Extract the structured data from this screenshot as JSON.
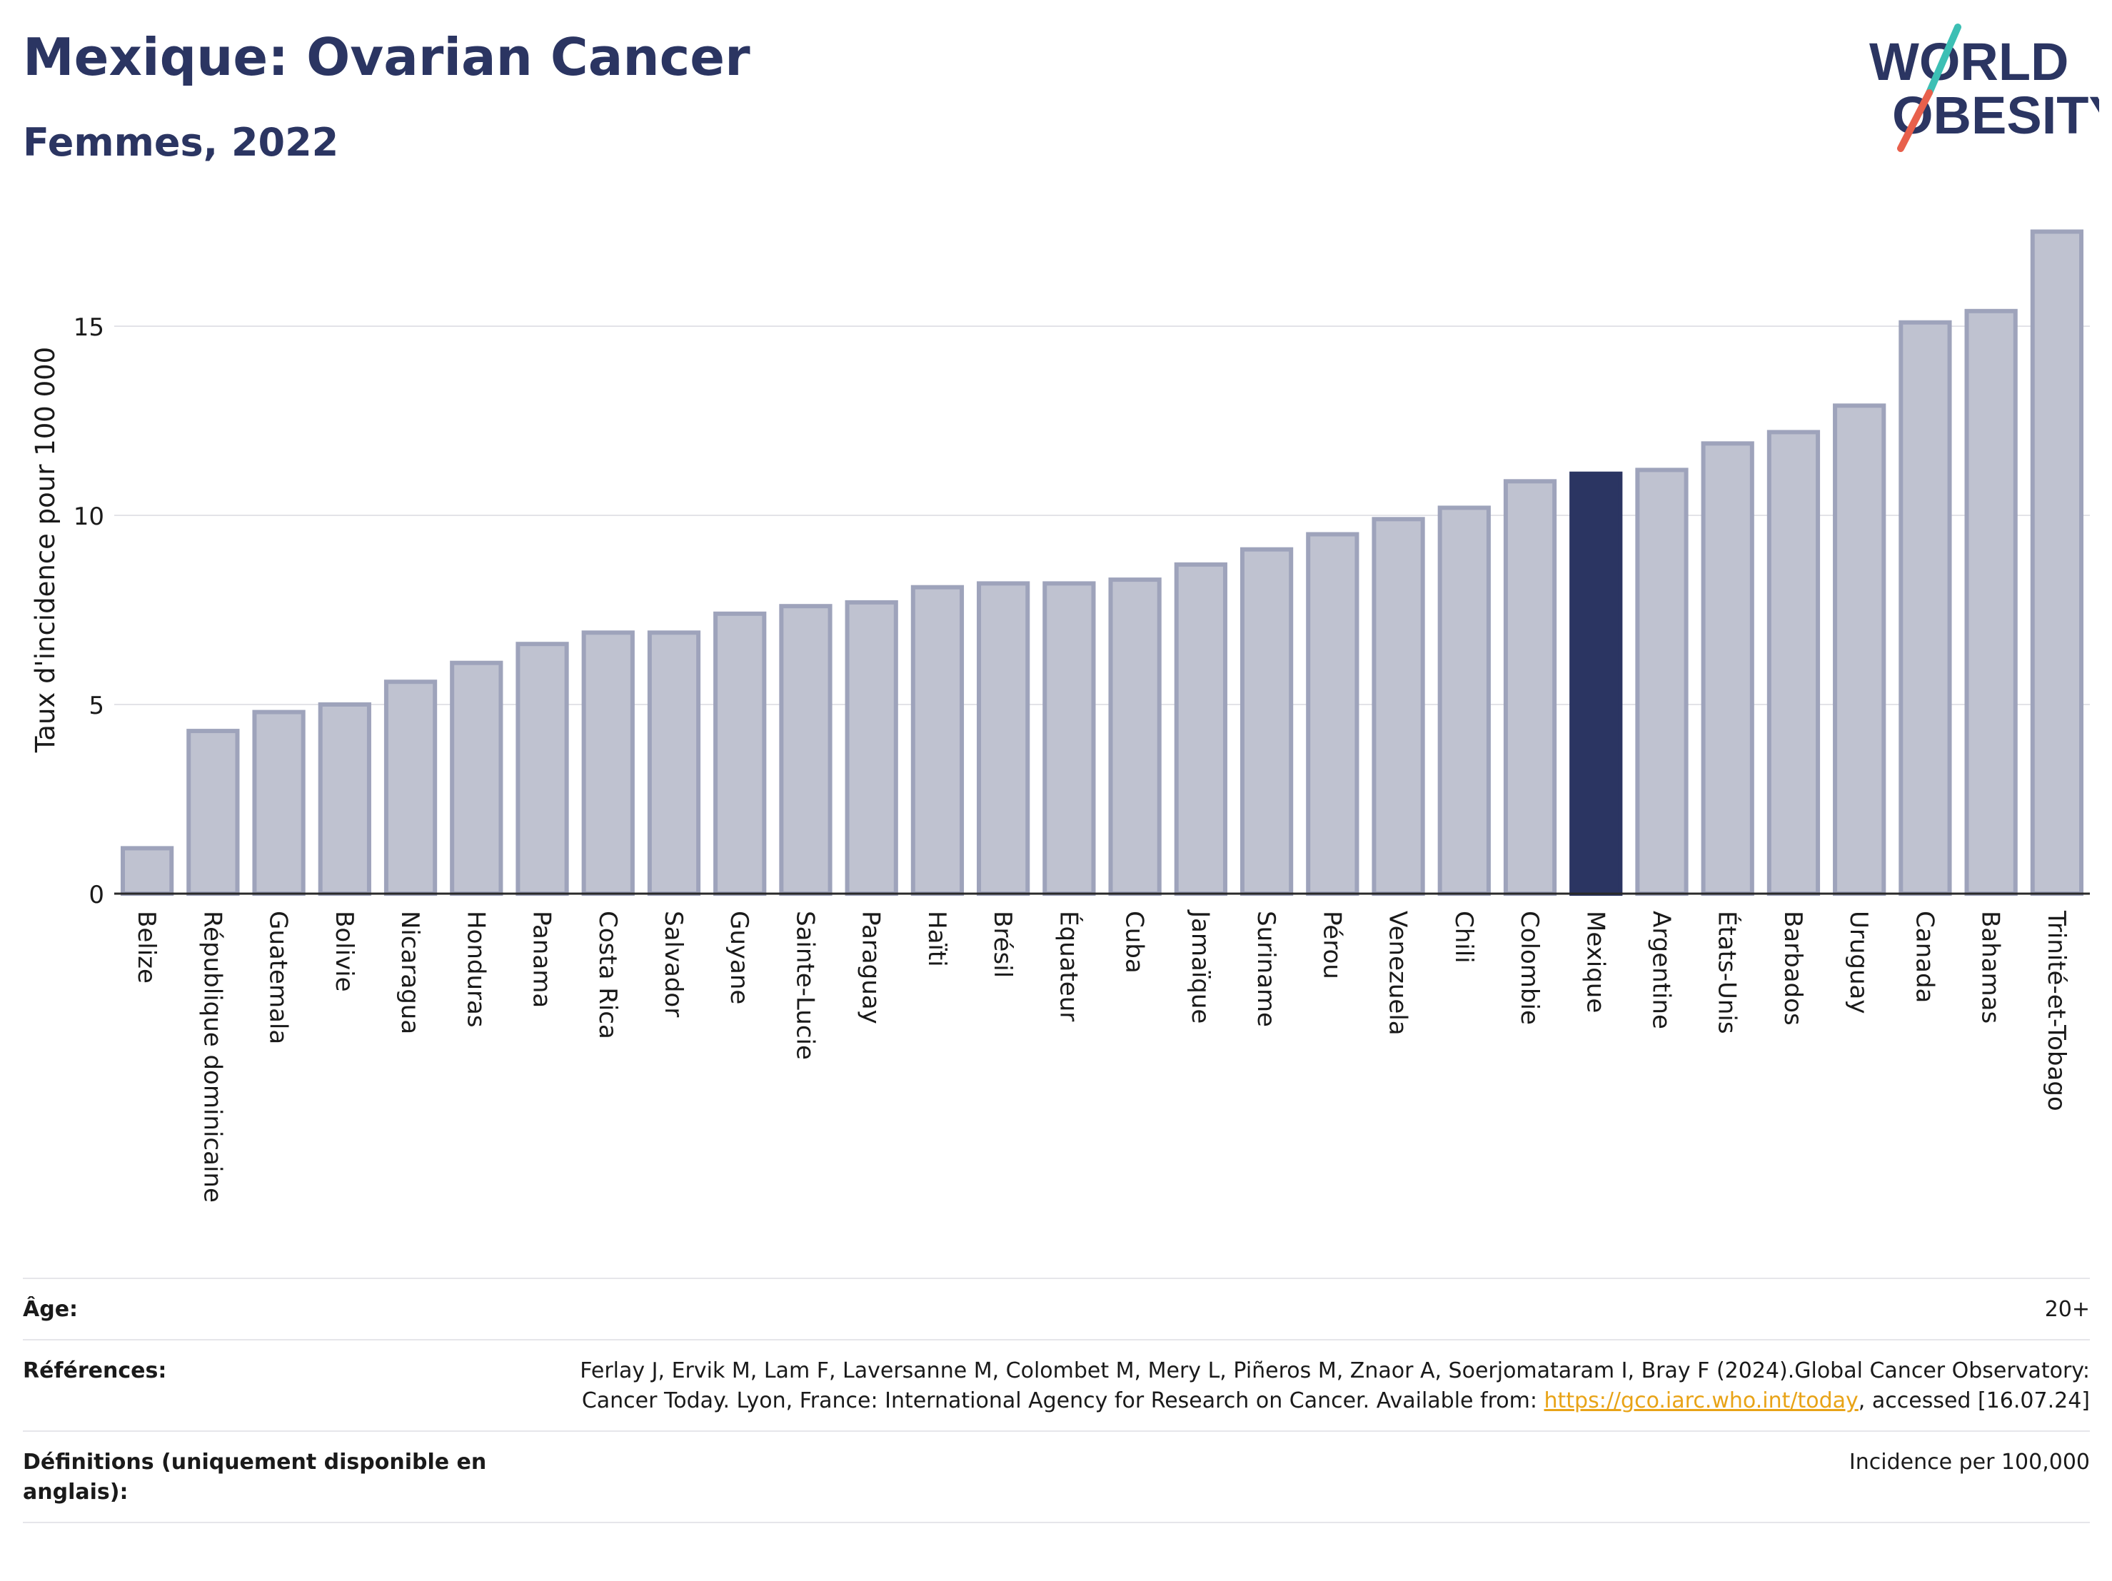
{
  "header": {
    "title": "Mexique: Ovarian Cancer",
    "subtitle": "Femmes, 2022"
  },
  "logo": {
    "line1": "WORLD",
    "line2": "OBESITY",
    "colors": {
      "text": "#2b3562",
      "slash_top": "#3cbfb4",
      "slash_bottom": "#e8604c"
    }
  },
  "chart_data": {
    "type": "bar",
    "ylabel": "Taux d'incidence pour 100 000",
    "xlabel": "",
    "ylim": [
      0,
      18
    ],
    "yticks": [
      0,
      5,
      10,
      15
    ],
    "grid": true,
    "highlight": "Mexique",
    "colors": {
      "bar": "#bfc2d0",
      "bar_edge": "#9ea3bb",
      "highlight": "#2b3562"
    },
    "categories": [
      "Belize",
      "République dominicaine",
      "Guatemala",
      "Bolivie",
      "Nicaragua",
      "Honduras",
      "Panama",
      "Costa Rica",
      "Salvador",
      "Guyane",
      "Sainte-Lucie",
      "Paraguay",
      "Haïti",
      "Brésil",
      "Équateur",
      "Cuba",
      "Jamaïque",
      "Suriname",
      "Pérou",
      "Venezuela",
      "Chili",
      "Colombie",
      "Mexique",
      "Argentine",
      "États-Unis",
      "Barbados",
      "Uruguay",
      "Canada",
      "Bahamas",
      "Trinité-et-Tobago"
    ],
    "values": [
      1.2,
      4.3,
      4.8,
      5.0,
      5.6,
      6.1,
      6.6,
      6.9,
      6.9,
      7.4,
      7.6,
      7.7,
      8.1,
      8.2,
      8.2,
      8.3,
      8.7,
      9.1,
      9.5,
      9.9,
      10.2,
      10.9,
      11.1,
      11.2,
      11.9,
      12.2,
      12.9,
      15.1,
      15.4,
      17.5
    ]
  },
  "meta": {
    "age_label": "Âge:",
    "age_value": "20+",
    "refs_label": "Références:",
    "refs_text_1": "Ferlay J, Ervik M, Lam F, Laversanne M, Colombet M, Mery L, Piñeros M, Znaor A, Soerjomataram I, Bray F (2024).Global Cancer Observatory: Cancer Today. Lyon, France: International Agency for Research on Cancer. Available from: ",
    "refs_link": "https://gco.iarc.who.int/today",
    "refs_text_2": ", accessed [16.07.24]",
    "defs_label": "Définitions (uniquement disponible en anglais):",
    "defs_value": "Incidence per 100,000"
  }
}
